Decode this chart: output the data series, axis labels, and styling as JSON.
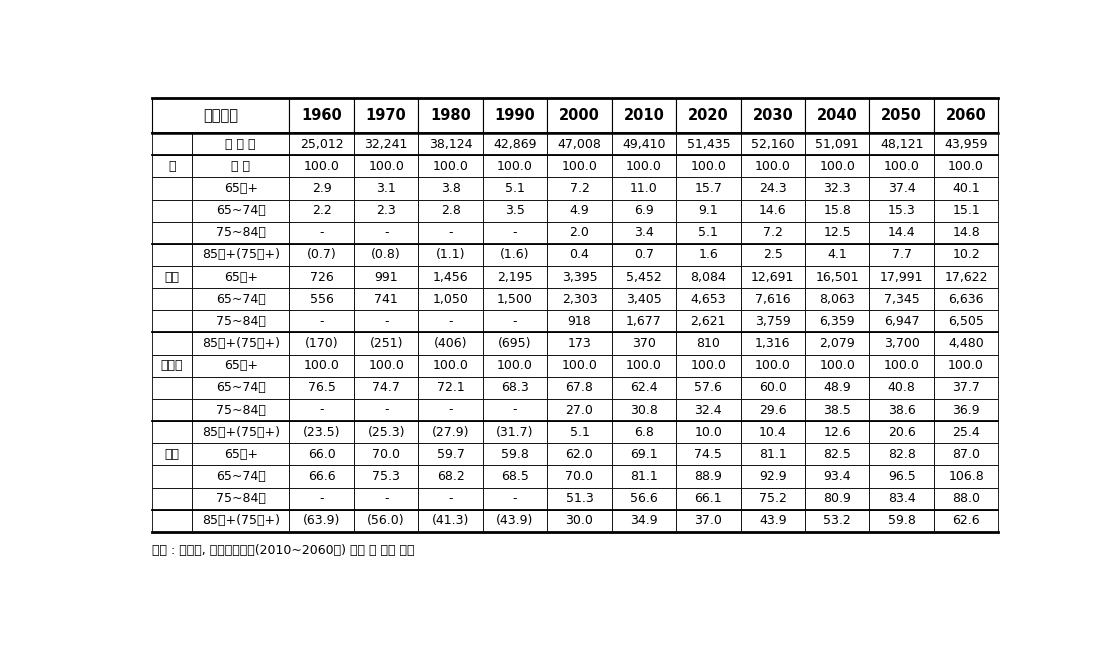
{
  "header_label": "중위가정",
  "years": [
    "1960",
    "1970",
    "1980",
    "1990",
    "2000",
    "2010",
    "2020",
    "2030",
    "2040",
    "2050",
    "2060"
  ],
  "rows": [
    {
      "group": "",
      "label": "총 인 구",
      "values": [
        "25,012",
        "32,241",
        "38,124",
        "42,869",
        "47,008",
        "49,410",
        "51,435",
        "52,160",
        "51,091",
        "48,121",
        "43,959"
      ]
    },
    {
      "group": "구",
      "label": "성 비",
      "values": [
        "100.0",
        "100.0",
        "100.0",
        "100.0",
        "100.0",
        "100.0",
        "100.0",
        "100.0",
        "100.0",
        "100.0",
        "100.0"
      ]
    },
    {
      "group": "",
      "label": "65세+",
      "values": [
        "2.9",
        "3.1",
        "3.8",
        "5.1",
        "7.2",
        "11.0",
        "15.7",
        "24.3",
        "32.3",
        "37.4",
        "40.1"
      ]
    },
    {
      "group": "",
      "label": "65~74세",
      "values": [
        "2.2",
        "2.3",
        "2.8",
        "3.5",
        "4.9",
        "6.9",
        "9.1",
        "14.6",
        "15.8",
        "15.3",
        "15.1"
      ]
    },
    {
      "group": "",
      "label": "75~84세",
      "values": [
        "-",
        "-",
        "-",
        "-",
        "2.0",
        "3.4",
        "5.1",
        "7.2",
        "12.5",
        "14.4",
        "14.8"
      ]
    },
    {
      "group": "",
      "label": "85세+(75세+)",
      "values": [
        "(0.7)",
        "(0.8)",
        "(1.1)",
        "(1.6)",
        "0.4",
        "0.7",
        "1.6",
        "2.5",
        "4.1",
        "7.7",
        "10.2"
      ]
    },
    {
      "group": "인구",
      "label": "65세+",
      "values": [
        "726",
        "991",
        "1,456",
        "2,195",
        "3,395",
        "5,452",
        "8,084",
        "12,691",
        "16,501",
        "17,991",
        "17,622"
      ]
    },
    {
      "group": "",
      "label": "65~74세",
      "values": [
        "556",
        "741",
        "1,050",
        "1,500",
        "2,303",
        "3,405",
        "4,653",
        "7,616",
        "8,063",
        "7,345",
        "6,636"
      ]
    },
    {
      "group": "",
      "label": "75~84세",
      "values": [
        "-",
        "-",
        "-",
        "-",
        "918",
        "1,677",
        "2,621",
        "3,759",
        "6,359",
        "6,947",
        "6,505"
      ]
    },
    {
      "group": "",
      "label": "85세+(75세+)",
      "values": [
        "(170)",
        "(251)",
        "(406)",
        "(695)",
        "173",
        "370",
        "810",
        "1,316",
        "2,079",
        "3,700",
        "4,480"
      ]
    },
    {
      "group": "구성비",
      "label": "65세+",
      "values": [
        "100.0",
        "100.0",
        "100.0",
        "100.0",
        "100.0",
        "100.0",
        "100.0",
        "100.0",
        "100.0",
        "100.0",
        "100.0"
      ]
    },
    {
      "group": "",
      "label": "65~74세",
      "values": [
        "76.5",
        "74.7",
        "72.1",
        "68.3",
        "67.8",
        "62.4",
        "57.6",
        "60.0",
        "48.9",
        "40.8",
        "37.7"
      ]
    },
    {
      "group": "",
      "label": "75~84세",
      "values": [
        "-",
        "-",
        "-",
        "-",
        "27.0",
        "30.8",
        "32.4",
        "29.6",
        "38.5",
        "38.6",
        "36.9"
      ]
    },
    {
      "group": "",
      "label": "85세+(75세+)",
      "values": [
        "(23.5)",
        "(25.3)",
        "(27.9)",
        "(31.7)",
        "5.1",
        "6.8",
        "10.0",
        "10.4",
        "12.6",
        "20.6",
        "25.4"
      ]
    },
    {
      "group": "성비",
      "label": "65세+",
      "values": [
        "66.0",
        "70.0",
        "59.7",
        "59.8",
        "62.0",
        "69.1",
        "74.5",
        "81.1",
        "82.5",
        "82.8",
        "87.0"
      ]
    },
    {
      "group": "",
      "label": "65~74세",
      "values": [
        "66.6",
        "75.3",
        "68.2",
        "68.5",
        "70.0",
        "81.1",
        "88.9",
        "92.9",
        "93.4",
        "96.5",
        "106.8"
      ]
    },
    {
      "group": "",
      "label": "75~84세",
      "values": [
        "-",
        "-",
        "-",
        "-",
        "51.3",
        "56.6",
        "66.1",
        "75.2",
        "80.9",
        "83.4",
        "88.0"
      ]
    },
    {
      "group": "",
      "label": "85세+(75세+)",
      "values": [
        "(63.9)",
        "(56.0)",
        "(41.3)",
        "(43.9)",
        "30.0",
        "34.9",
        "37.0",
        "43.9",
        "53.2",
        "59.8",
        "62.6"
      ]
    }
  ],
  "footer_text": "자료 : 통계청, 장례인구추계(2010~2060년) 자료 중 일부 발췌",
  "bg_color": "#ffffff",
  "border_color": "#000000",
  "font_size": 9.0,
  "header_font_size": 10.5,
  "group_section_borders": [
    0,
    1,
    5,
    9,
    13,
    17
  ]
}
